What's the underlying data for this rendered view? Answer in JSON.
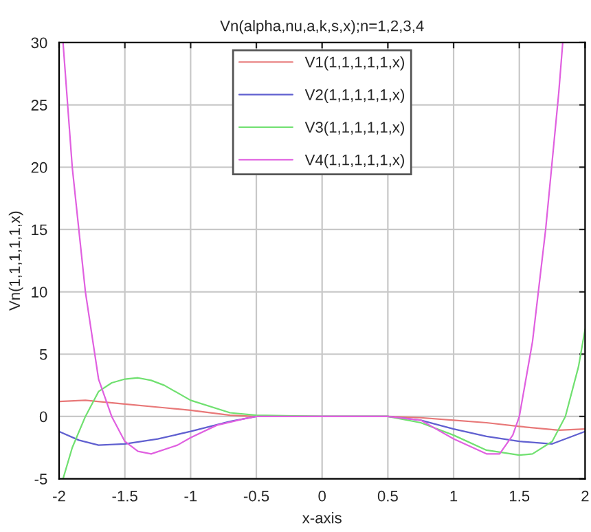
{
  "chart_data": {
    "type": "line",
    "title": "Vn(alpha,nu,a,k,s,x);n=1,2,3,4",
    "xlabel": "x-axis",
    "ylabel": "Vn(1,1,1,1,1,x)",
    "xlim": [
      -2,
      2
    ],
    "xticks": [
      -2,
      -1.5,
      -1,
      -0.5,
      0,
      0.5,
      1,
      1.5,
      2
    ],
    "ylim": [
      -5,
      30
    ],
    "yticks": [
      -5,
      0,
      5,
      10,
      15,
      20,
      25,
      30
    ],
    "grid": true,
    "legend": "top",
    "line_style": "solid",
    "marker": "none",
    "series": [
      {
        "name": "V1(1,1,1,1,1,x)",
        "color": "#e87878",
        "x": [
          -2,
          -1.8,
          -1.5,
          -1.2,
          -1,
          -0.7,
          -0.5,
          0,
          0.5,
          0.75,
          1,
          1.25,
          1.5,
          1.8,
          2
        ],
        "values": [
          1.2,
          1.3,
          1.0,
          0.7,
          0.5,
          0.1,
          0,
          0,
          0,
          -0.1,
          -0.3,
          -0.5,
          -0.8,
          -1.1,
          -1.0
        ]
      },
      {
        "name": "V2(1,1,1,1,1,x)",
        "color": "#6060d0",
        "x": [
          -2,
          -1.85,
          -1.7,
          -1.5,
          -1.25,
          -1,
          -0.7,
          -0.5,
          0,
          0.5,
          0.75,
          1,
          1.25,
          1.5,
          1.75,
          2
        ],
        "values": [
          -1.2,
          -1.9,
          -2.3,
          -2.2,
          -1.8,
          -1.2,
          -0.4,
          0,
          0,
          0,
          -0.3,
          -1.0,
          -1.6,
          -2.0,
          -2.2,
          -1.2
        ]
      },
      {
        "name": "V3(1,1,1,1,1,x)",
        "color": "#70e070",
        "x": [
          -1.97,
          -1.9,
          -1.8,
          -1.7,
          -1.6,
          -1.5,
          -1.4,
          -1.3,
          -1.2,
          -1,
          -0.7,
          -0.5,
          0,
          0.5,
          0.75,
          1,
          1.25,
          1.5,
          1.6,
          1.75,
          1.85,
          1.95,
          2
        ],
        "values": [
          -5,
          -2.5,
          0,
          2.0,
          2.7,
          3.0,
          3.1,
          2.9,
          2.5,
          1.3,
          0.3,
          0.1,
          0,
          0,
          -0.5,
          -1.5,
          -2.7,
          -3.1,
          -3.0,
          -2.0,
          0,
          4,
          7
        ]
      },
      {
        "name": "V4(1,1,1,1,1,x)",
        "color": "#e060e0",
        "x": [
          -1.97,
          -1.9,
          -1.8,
          -1.7,
          -1.6,
          -1.5,
          -1.4,
          -1.3,
          -1.1,
          -1,
          -0.8,
          -0.6,
          -0.5,
          0,
          0.5,
          0.75,
          1,
          1.25,
          1.35,
          1.45,
          1.5,
          1.6,
          1.7,
          1.8,
          1.83
        ],
        "values": [
          30,
          20,
          10,
          3,
          0,
          -2.0,
          -2.8,
          -3.0,
          -2.3,
          -1.7,
          -0.7,
          -0.2,
          0,
          0,
          0,
          -0.3,
          -1.8,
          -3.0,
          -3.0,
          -1.5,
          0,
          6,
          15,
          26,
          30
        ]
      }
    ]
  }
}
